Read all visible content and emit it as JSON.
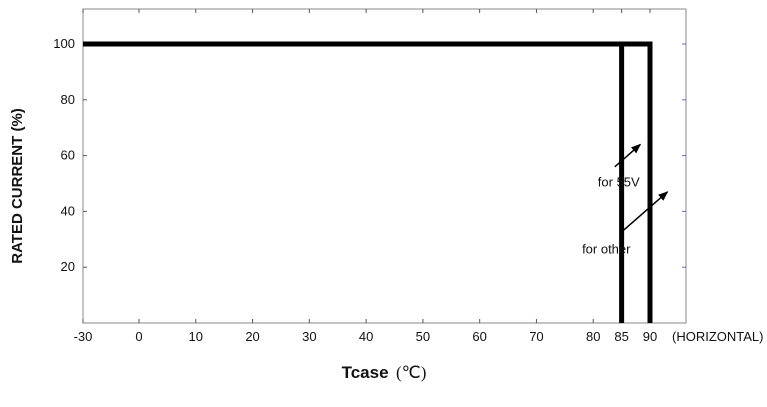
{
  "chart_data": {
    "type": "line",
    "title": "",
    "xlabel": "Tcase",
    "xlabel_unit": "(℃)",
    "x_unit_label": "(HORIZONTAL)",
    "ylabel": "RATED CURRENT (%)",
    "xlim": [
      -30,
      97
    ],
    "ylim": [
      0,
      112
    ],
    "x_ticks": [
      -30,
      0,
      10,
      20,
      30,
      40,
      50,
      60,
      70,
      80,
      85,
      90
    ],
    "x_tick_labels": [
      "-30",
      "0",
      "10",
      "20",
      "30",
      "40",
      "50",
      "60",
      "70",
      "80",
      "85",
      "90"
    ],
    "y_ticks": [
      20,
      40,
      60,
      80,
      100
    ],
    "y_tick_labels": [
      "20",
      "40",
      "60",
      "80",
      "100"
    ],
    "grid": false,
    "series": [
      {
        "name": "for 55V",
        "x": [
          -30,
          85,
          85
        ],
        "y": [
          100,
          100,
          0
        ]
      },
      {
        "name": "for other",
        "x": [
          -30,
          90,
          90
        ],
        "y": [
          100,
          100,
          0
        ]
      }
    ],
    "annotations": [
      {
        "text": "for 55V",
        "text_x": 84.5,
        "text_y": 49,
        "arrow_from": [
          83.8,
          56
        ],
        "arrow_to": [
          88.3,
          64
        ]
      },
      {
        "text": "for other",
        "text_x": 82.3,
        "text_y": 25,
        "arrow_from": [
          85.2,
          33
        ],
        "arrow_to": [
          93.4,
          47
        ]
      }
    ]
  }
}
